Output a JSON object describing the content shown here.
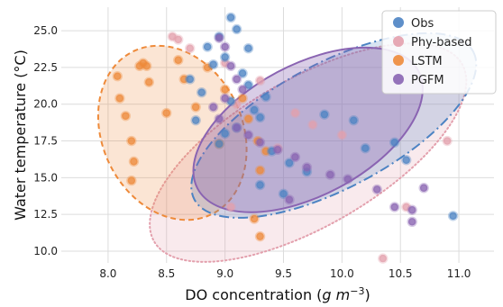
{
  "chart_data": {
    "type": "scatter",
    "xlabel": "DO concentration ($g\\,m^{-3}$)",
    "xlabel_parts": {
      "main": "DO concentration (",
      "g": "g",
      "m": " m",
      "exp": "−3",
      "close": ")"
    },
    "ylabel": "Water temperature (°C)",
    "xlim": [
      7.6,
      11.3
    ],
    "ylim": [
      9.2,
      26.6
    ],
    "xticks": [
      8.0,
      8.5,
      9.0,
      9.5,
      10.0,
      10.5,
      11.0
    ],
    "xtick_labels": [
      "8.0",
      "8.5",
      "9.0",
      "9.5",
      "10.0",
      "10.5",
      "11.0"
    ],
    "yticks": [
      10.0,
      12.5,
      15.0,
      17.5,
      20.0,
      22.5,
      25.0
    ],
    "ytick_labels": [
      "10.0",
      "12.5",
      "15.0",
      "17.5",
      "20.0",
      "22.5",
      "25.0"
    ],
    "grid": true,
    "legend_position": "top-right",
    "series": [
      {
        "name": "Obs",
        "color": "#4c83c3",
        "ellipse": {
          "cx": 9.93,
          "cy": 18.55,
          "rx": 1.35,
          "ry": 4.25,
          "angle_deg": -28,
          "dash": "dashdot"
        },
        "x": [
          9.05,
          9.1,
          8.95,
          8.85,
          9.0,
          8.9,
          9.15,
          9.2,
          8.8,
          9.05,
          9.25,
          9.3,
          9.1,
          9.0,
          8.95,
          9.4,
          9.55,
          9.7,
          9.85,
          10.1,
          10.2,
          10.45,
          10.55,
          10.95,
          9.3,
          9.5,
          8.75,
          8.7,
          9.2,
          9.35
        ],
        "y": [
          25.9,
          25.1,
          24.6,
          23.9,
          23.2,
          22.7,
          22.1,
          21.3,
          20.8,
          20.2,
          19.6,
          19.1,
          18.4,
          18.0,
          17.3,
          16.8,
          16.0,
          15.4,
          19.3,
          18.9,
          17.0,
          17.4,
          16.2,
          12.4,
          14.5,
          13.9,
          18.9,
          21.7,
          23.8,
          20.5
        ]
      },
      {
        "name": "Phy-based",
        "color": "#e3a0ad",
        "ellipse": {
          "cx": 9.71,
          "cy": 16.7,
          "rx": 1.52,
          "ry": 5.0,
          "angle_deg": -30,
          "dash": "dotted"
        },
        "x": [
          8.55,
          8.6,
          8.7,
          9.0,
          9.3,
          9.6,
          9.75,
          10.0,
          10.35,
          10.55,
          10.9,
          9.1,
          9.45,
          9.05
        ],
        "y": [
          24.6,
          24.4,
          23.8,
          22.8,
          21.6,
          19.4,
          18.6,
          17.9,
          9.5,
          13.0,
          17.5,
          20.0,
          17.0,
          13.0
        ]
      },
      {
        "name": "LSTM",
        "color": "#ee8a3a",
        "ellipse": {
          "cx": 8.55,
          "cy": 18.05,
          "rx": 0.6,
          "ry": 6.15,
          "angle_deg": -25,
          "dash": "dashed"
        },
        "x": [
          8.08,
          8.1,
          8.15,
          8.2,
          8.22,
          8.27,
          8.3,
          8.33,
          8.35,
          8.2,
          8.5,
          8.6,
          8.65,
          8.75,
          8.85,
          9.0,
          9.15,
          9.2,
          9.25,
          9.28,
          9.3,
          9.3,
          9.35,
          8.95
        ],
        "y": [
          21.9,
          20.4,
          19.2,
          17.5,
          16.1,
          22.6,
          22.8,
          22.6,
          21.5,
          14.8,
          19.4,
          23.0,
          21.7,
          19.8,
          22.5,
          21.0,
          20.4,
          19.0,
          12.2,
          17.5,
          15.5,
          11.0,
          16.8,
          17.3
        ]
      },
      {
        "name": "PGFM",
        "color": "#8a64b2",
        "ellipse": {
          "cx": 9.71,
          "cy": 18.25,
          "rx": 1.07,
          "ry": 4.45,
          "angle_deg": -28,
          "dash": "solid"
        },
        "x": [
          8.95,
          9.0,
          9.05,
          9.1,
          9.15,
          9.0,
          8.9,
          8.95,
          9.1,
          9.2,
          9.3,
          9.45,
          9.6,
          9.7,
          9.9,
          10.05,
          10.3,
          10.45,
          10.6,
          10.6,
          10.7,
          9.55
        ],
        "y": [
          24.5,
          23.9,
          22.6,
          21.7,
          21.0,
          20.4,
          19.8,
          19.0,
          18.4,
          17.9,
          17.4,
          16.9,
          16.4,
          15.7,
          15.2,
          14.9,
          14.2,
          13.0,
          12.8,
          12.0,
          14.3,
          13.5
        ]
      }
    ]
  }
}
